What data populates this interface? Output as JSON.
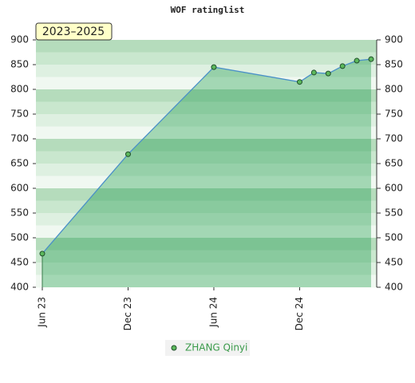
{
  "chart_data": {
    "type": "line",
    "title": "WOF ratinglist",
    "annotation": "2023–2025",
    "x": [
      "2023-06",
      "2023-12",
      "2024-06",
      "2024-12",
      "2025-01",
      "2025-02",
      "2025-03",
      "2025-04",
      "2025-05"
    ],
    "series": [
      {
        "name": "ZHANG Qinyi",
        "color": "#5cb85c",
        "line_color": "#4a90c8",
        "values": [
          468,
          669,
          845,
          815,
          834,
          832,
          847,
          858,
          861
        ]
      }
    ],
    "xticks": [
      {
        "value": "2023-06",
        "label": "Jun 23"
      },
      {
        "value": "2023-12",
        "label": "Dec 23"
      },
      {
        "value": "2024-06",
        "label": "Jun 24"
      },
      {
        "value": "2024-12",
        "label": "Dec 24"
      }
    ],
    "xlim": [
      "2023-06",
      "2025-05"
    ],
    "ylim": [
      400,
      900
    ],
    "yticks": [
      400,
      450,
      500,
      550,
      600,
      650,
      700,
      750,
      800,
      850,
      900
    ],
    "y2lim": [
      400,
      900
    ],
    "y2ticks": [
      400,
      450,
      500,
      550,
      600,
      650,
      700,
      750,
      800,
      850,
      900
    ],
    "grid": true,
    "legend": "bottom"
  }
}
